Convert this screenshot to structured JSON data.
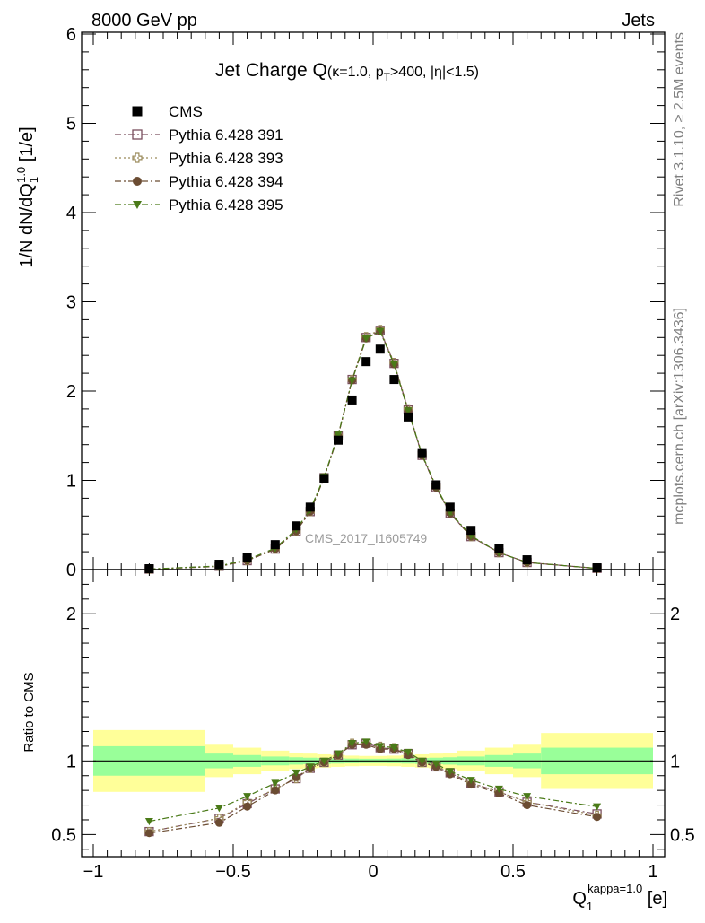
{
  "header": {
    "left": "8000 GeV pp",
    "right": "Jets"
  },
  "side_labels": {
    "rivet": "Rivet 3.1.10, ≥ 2.5M events",
    "mcplots": "mcplots.cern.ch [arXiv:1306.3436]"
  },
  "chart_data": [
    {
      "type": "scatter",
      "panel": "main",
      "title": {
        "main": "Jet Charge Q",
        "paren_open": "(",
        "kappa": "κ=1.0, p",
        "pt_sub": "T",
        "cuts": ">400, |η|<1.5)"
      },
      "watermark": "CMS_2017_I1605749",
      "ylabel": {
        "prefix": "1/N dN/dQ",
        "sub": "1",
        "sup": "1.0",
        "suffix": " [1/e]"
      },
      "xlim": [
        -1.0,
        1.0
      ],
      "ylim": [
        0,
        6
      ],
      "y_ticks": [
        0,
        1,
        2,
        3,
        4,
        5,
        6
      ],
      "y_tick_labels": [
        "0",
        "1",
        "2",
        "3",
        "4",
        "5",
        "6"
      ],
      "legend_position": "top-left",
      "x": [
        -0.8,
        -0.55,
        -0.45,
        -0.35,
        -0.275,
        -0.225,
        -0.175,
        -0.125,
        -0.075,
        -0.025,
        0.025,
        0.075,
        0.125,
        0.175,
        0.225,
        0.275,
        0.35,
        0.45,
        0.55,
        0.8
      ],
      "series": [
        {
          "name": "CMS",
          "style": "data",
          "color": "#000000",
          "marker": "square-filled",
          "values": [
            0.01,
            0.06,
            0.14,
            0.28,
            0.49,
            0.7,
            1.02,
            1.45,
            1.9,
            2.33,
            2.47,
            2.13,
            1.71,
            1.3,
            0.95,
            0.7,
            0.44,
            0.24,
            0.11,
            0.02
          ]
        },
        {
          "name": "Pythia 6.428 391",
          "style": "mc",
          "color": "#7a4f5e",
          "marker": "square-open",
          "dash": "7,3,2,3",
          "values": [
            0.005,
            0.037,
            0.1,
            0.23,
            0.43,
            0.65,
            1.03,
            1.5,
            2.13,
            2.6,
            2.68,
            2.31,
            1.79,
            1.28,
            0.92,
            0.63,
            0.37,
            0.19,
            0.08,
            0.013
          ]
        },
        {
          "name": "Pythia 6.428 393",
          "style": "mc",
          "color": "#9a8a5a",
          "marker": "cross-open",
          "dash": "2,3",
          "values": [
            0.005,
            0.037,
            0.1,
            0.23,
            0.43,
            0.65,
            1.03,
            1.5,
            2.13,
            2.61,
            2.69,
            2.32,
            1.8,
            1.29,
            0.93,
            0.64,
            0.37,
            0.19,
            0.08,
            0.013
          ]
        },
        {
          "name": "Pythia 6.428 394",
          "style": "mc",
          "color": "#6b4c32",
          "marker": "circle-filled",
          "dash": "7,3,2,3",
          "values": [
            0.005,
            0.035,
            0.1,
            0.23,
            0.43,
            0.65,
            1.03,
            1.5,
            2.12,
            2.59,
            2.67,
            2.3,
            1.78,
            1.28,
            0.92,
            0.63,
            0.37,
            0.19,
            0.08,
            0.012
          ]
        },
        {
          "name": "Pythia 6.428 395",
          "style": "mc",
          "color": "#4a7a18",
          "marker": "triangle-down-filled",
          "dash": "7,3,2,3",
          "values": [
            0.006,
            0.041,
            0.11,
            0.24,
            0.45,
            0.67,
            1.04,
            1.51,
            2.12,
            2.59,
            2.67,
            2.3,
            1.78,
            1.29,
            0.93,
            0.64,
            0.38,
            0.19,
            0.08,
            0.014
          ]
        }
      ]
    },
    {
      "type": "scatter",
      "panel": "ratio",
      "ylabel": "Ratio to CMS",
      "xlabel": {
        "main": "Q",
        "sub": "1",
        "sup": "kappa=1.0",
        "suffix": " [e]"
      },
      "xlim": [
        -1.0,
        1.0
      ],
      "ylim": [
        0.35,
        2.3
      ],
      "x_ticks": [
        -1.0,
        -0.5,
        0.0,
        0.5,
        1.0
      ],
      "x_tick_labels": [
        "−1",
        "−0.5",
        "0",
        "0.5",
        "1"
      ],
      "y_ticks": [
        0.5,
        1,
        2
      ],
      "y_tick_labels": [
        "0.5",
        "1",
        "2"
      ],
      "bands": {
        "edges": [
          -1.0,
          -0.6,
          -0.5,
          -0.4,
          -0.3,
          -0.25,
          -0.2,
          -0.15,
          -0.1,
          -0.05,
          0.0,
          0.05,
          0.1,
          0.15,
          0.2,
          0.25,
          0.3,
          0.4,
          0.5,
          0.6,
          1.0
        ],
        "inner_half_width": [
          0.1,
          0.05,
          0.04,
          0.03,
          0.025,
          0.022,
          0.02,
          0.018,
          0.016,
          0.015,
          0.015,
          0.016,
          0.018,
          0.02,
          0.022,
          0.025,
          0.03,
          0.04,
          0.05,
          0.09
        ],
        "outer_half_width": [
          0.21,
          0.11,
          0.09,
          0.07,
          0.055,
          0.05,
          0.045,
          0.04,
          0.036,
          0.034,
          0.034,
          0.036,
          0.04,
          0.045,
          0.05,
          0.055,
          0.07,
          0.09,
          0.11,
          0.19
        ],
        "inner_color": "#99ff99",
        "outer_color": "#ffff99"
      },
      "x": [
        -0.8,
        -0.55,
        -0.45,
        -0.35,
        -0.275,
        -0.225,
        -0.175,
        -0.125,
        -0.075,
        -0.025,
        0.025,
        0.075,
        0.125,
        0.175,
        0.225,
        0.275,
        0.35,
        0.45,
        0.55,
        0.8
      ],
      "series": [
        {
          "name": "Pythia 6.428 391",
          "color": "#7a4f5e",
          "marker": "square-open",
          "dash": "7,3,2,3",
          "values": [
            0.52,
            0.61,
            0.71,
            0.81,
            0.88,
            0.95,
            0.99,
            1.04,
            1.11,
            1.12,
            1.09,
            1.08,
            1.05,
            0.99,
            0.96,
            0.92,
            0.85,
            0.79,
            0.72,
            0.64
          ]
        },
        {
          "name": "Pythia 6.428 393",
          "color": "#9a8a5a",
          "marker": "cross-open",
          "dash": "2,3",
          "values": [
            0.52,
            0.61,
            0.72,
            0.81,
            0.88,
            0.95,
            0.99,
            1.04,
            1.12,
            1.12,
            1.1,
            1.09,
            1.05,
            0.99,
            0.97,
            0.92,
            0.85,
            0.79,
            0.72,
            0.63
          ]
        },
        {
          "name": "Pythia 6.428 394",
          "color": "#6b4c32",
          "marker": "circle-filled",
          "dash": "7,3,2,3",
          "values": [
            0.51,
            0.58,
            0.69,
            0.8,
            0.89,
            0.95,
            0.99,
            1.04,
            1.11,
            1.11,
            1.08,
            1.08,
            1.04,
            0.99,
            0.96,
            0.91,
            0.84,
            0.78,
            0.7,
            0.62
          ]
        },
        {
          "name": "Pythia 6.428 395",
          "color": "#4a7a18",
          "marker": "triangle-down-filled",
          "dash": "7,3,2,3",
          "values": [
            0.59,
            0.68,
            0.76,
            0.85,
            0.92,
            0.96,
            1.0,
            1.05,
            1.12,
            1.13,
            1.1,
            1.09,
            1.06,
            1.0,
            0.98,
            0.93,
            0.87,
            0.81,
            0.76,
            0.69
          ]
        }
      ]
    }
  ]
}
